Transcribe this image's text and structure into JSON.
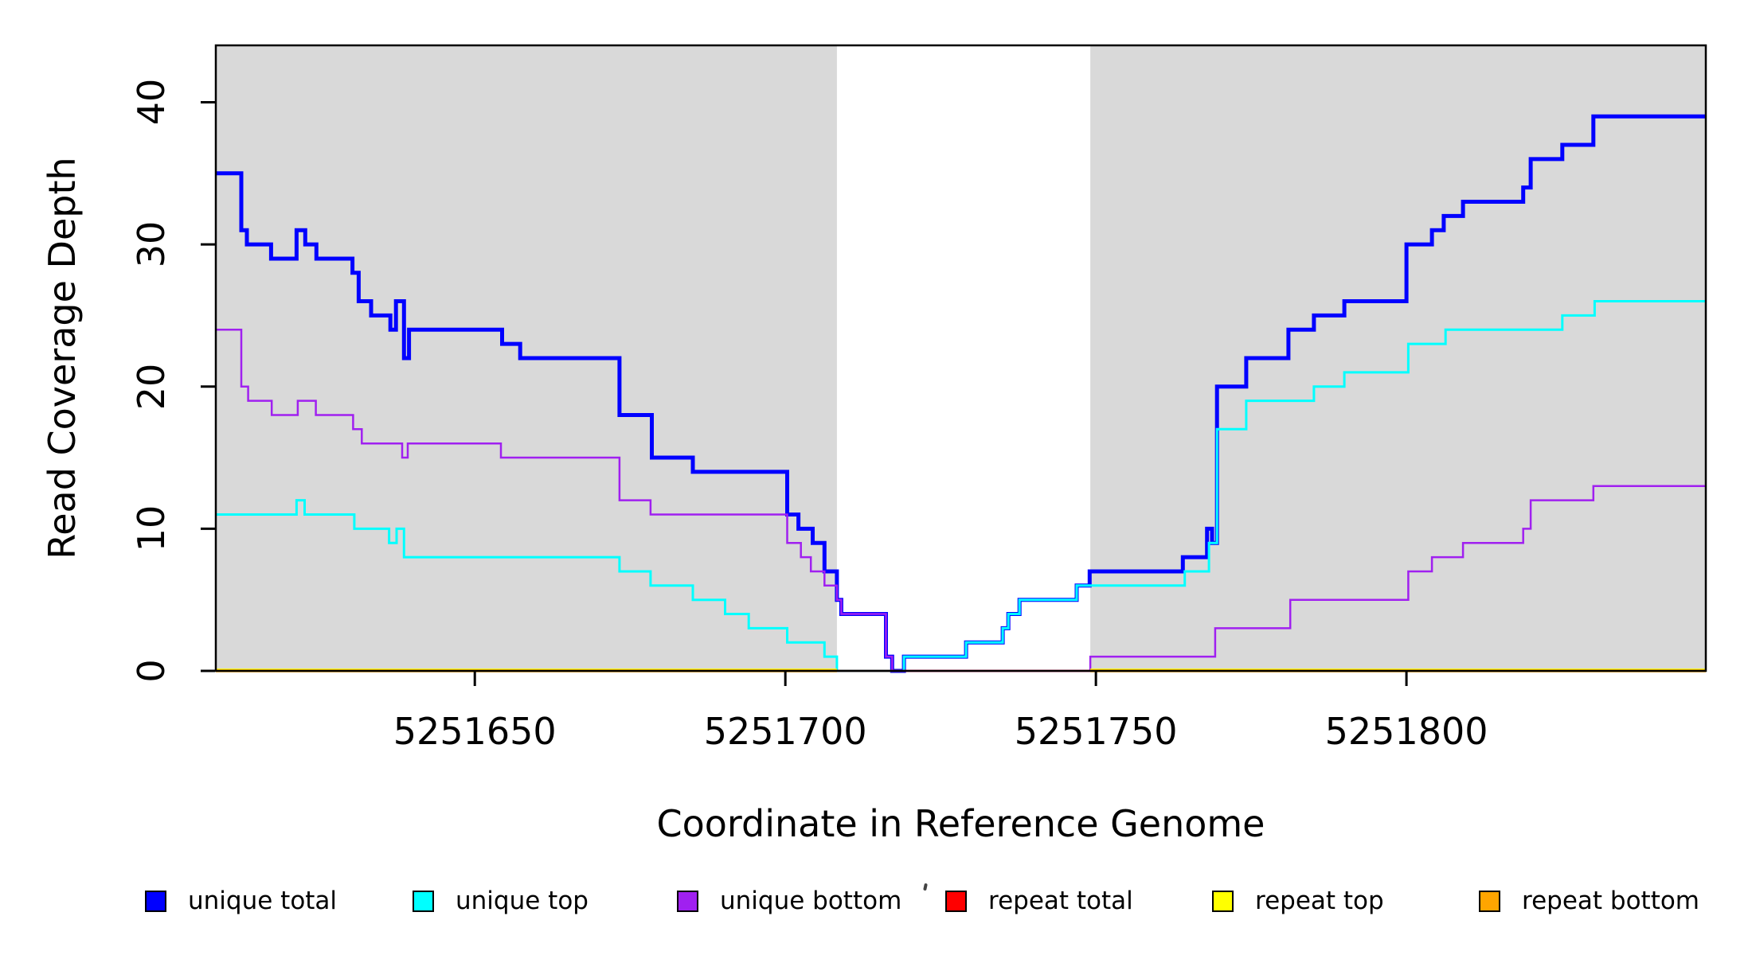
{
  "figure": {
    "y_axis_title": "Read Coverage Depth",
    "x_axis_title": "Coordinate in Reference Genome",
    "background_color": "#ffffff",
    "shaded_band_color": "#d9d9d9",
    "axis_color": "#000000"
  },
  "chart_data": {
    "type": "line",
    "subtype": "step-coverage",
    "title": "",
    "xlabel": "Coordinate in Reference Genome",
    "ylabel": "Read Coverage Depth",
    "xlim": [
      5251608.3,
      5251848.2
    ],
    "ylim": [
      0,
      44
    ],
    "x_ticks": [
      5251650,
      5251700,
      5251750,
      5251800
    ],
    "y_ticks": [
      0,
      10,
      20,
      30,
      40
    ],
    "grid": false,
    "legend_position": "bottom",
    "shaded_x_ranges": [
      [
        5251608.3,
        5251708.3
      ],
      [
        5251749.1,
        5251848.2
      ]
    ],
    "series": [
      {
        "name": "unique total",
        "color": "#0000ff",
        "step_points": [
          [
            5251608.3,
            35
          ],
          [
            5251612.4,
            31
          ],
          [
            5251613.3,
            30
          ],
          [
            5251617.2,
            29
          ],
          [
            5251621.3,
            31
          ],
          [
            5251622.7,
            30
          ],
          [
            5251624.5,
            29
          ],
          [
            5251630.3,
            28
          ],
          [
            5251631.3,
            26
          ],
          [
            5251633.3,
            25
          ],
          [
            5251636.4,
            24
          ],
          [
            5251637.3,
            26
          ],
          [
            5251638.6,
            22
          ],
          [
            5251639.4,
            24
          ],
          [
            5251654.4,
            23
          ],
          [
            5251657.3,
            22
          ],
          [
            5251673.3,
            18
          ],
          [
            5251678.5,
            15
          ],
          [
            5251685.1,
            14
          ],
          [
            5251700.3,
            11
          ],
          [
            5251702.1,
            10
          ],
          [
            5251704.4,
            9
          ],
          [
            5251706.3,
            7
          ],
          [
            5251708.3,
            5
          ],
          [
            5251709.0,
            4
          ],
          [
            5251716.2,
            1
          ],
          [
            5251717.2,
            0
          ],
          [
            5251719.1,
            1
          ],
          [
            5251729.1,
            2
          ],
          [
            5251735.0,
            3
          ],
          [
            5251735.9,
            4
          ],
          [
            5251737.7,
            5
          ],
          [
            5251746.9,
            6
          ],
          [
            5251749.0,
            7
          ],
          [
            5251764.0,
            8
          ],
          [
            5251767.9,
            10
          ],
          [
            5251768.7,
            9
          ],
          [
            5251769.5,
            20
          ],
          [
            5251774.2,
            22
          ],
          [
            5251781.0,
            24
          ],
          [
            5251785.1,
            25
          ],
          [
            5251790.0,
            26
          ],
          [
            5251800.0,
            30
          ],
          [
            5251804.1,
            31
          ],
          [
            5251806.0,
            32
          ],
          [
            5251809.1,
            33
          ],
          [
            5251818.8,
            34
          ],
          [
            5251820.0,
            36
          ],
          [
            5251825.1,
            37
          ],
          [
            5251830.1,
            39
          ]
        ]
      },
      {
        "name": "unique top",
        "color": "#00ffff",
        "step_points": [
          [
            5251608.3,
            11
          ],
          [
            5251621.3,
            12
          ],
          [
            5251622.6,
            11
          ],
          [
            5251630.6,
            10
          ],
          [
            5251636.2,
            9
          ],
          [
            5251637.4,
            10
          ],
          [
            5251638.6,
            8
          ],
          [
            5251673.3,
            7
          ],
          [
            5251678.3,
            6
          ],
          [
            5251685.1,
            5
          ],
          [
            5251690.3,
            4
          ],
          [
            5251694.1,
            3
          ],
          [
            5251700.3,
            2
          ],
          [
            5251706.3,
            1
          ],
          [
            5251708.3,
            0
          ],
          [
            5251719.1,
            1
          ],
          [
            5251729.1,
            2
          ],
          [
            5251735.0,
            3
          ],
          [
            5251735.9,
            4
          ],
          [
            5251737.7,
            5
          ],
          [
            5251746.9,
            6
          ],
          [
            5251764.3,
            7
          ],
          [
            5251768.2,
            9
          ],
          [
            5251769.5,
            17
          ],
          [
            5251774.2,
            19
          ],
          [
            5251785.1,
            20
          ],
          [
            5251790.0,
            21
          ],
          [
            5251800.3,
            23
          ],
          [
            5251806.3,
            24
          ],
          [
            5251825.1,
            25
          ],
          [
            5251830.3,
            26
          ]
        ]
      },
      {
        "name": "unique bottom",
        "color": "#a020f0",
        "step_points": [
          [
            5251608.3,
            24
          ],
          [
            5251612.4,
            20
          ],
          [
            5251613.5,
            19
          ],
          [
            5251617.3,
            18
          ],
          [
            5251621.5,
            19
          ],
          [
            5251624.4,
            18
          ],
          [
            5251630.4,
            17
          ],
          [
            5251631.8,
            16
          ],
          [
            5251638.3,
            15
          ],
          [
            5251639.2,
            16
          ],
          [
            5251654.2,
            15
          ],
          [
            5251673.3,
            12
          ],
          [
            5251678.3,
            11
          ],
          [
            5251700.3,
            9
          ],
          [
            5251702.5,
            8
          ],
          [
            5251704.1,
            7
          ],
          [
            5251706.3,
            6
          ],
          [
            5251708.3,
            5
          ],
          [
            5251709.0,
            4
          ],
          [
            5251716.2,
            1
          ],
          [
            5251717.2,
            0
          ],
          [
            5251749.1,
            1
          ],
          [
            5251769.2,
            3
          ],
          [
            5251781.3,
            5
          ],
          [
            5251800.3,
            7
          ],
          [
            5251804.1,
            8
          ],
          [
            5251809.1,
            9
          ],
          [
            5251818.8,
            10
          ],
          [
            5251820.0,
            12
          ],
          [
            5251830.1,
            13
          ]
        ]
      },
      {
        "name": "repeat total",
        "color": "#ff0000",
        "step_points": [
          [
            5251608.3,
            0
          ]
        ]
      },
      {
        "name": "repeat top",
        "color": "#ffff00",
        "step_points": [
          [
            5251608.3,
            0
          ]
        ]
      },
      {
        "name": "repeat bottom",
        "color": "#ffa500",
        "step_points": [
          [
            5251608.3,
            0
          ]
        ]
      }
    ]
  },
  "legend": {
    "items": [
      {
        "label": "unique total",
        "color": "#0000ff"
      },
      {
        "label": "unique top",
        "color": "#00ffff"
      },
      {
        "label": "unique bottom",
        "color": "#a020f0"
      },
      {
        "label": "repeat total",
        "color": "#ff0000"
      },
      {
        "label": "repeat top",
        "color": "#ffff00"
      },
      {
        "label": "repeat bottom",
        "color": "#ffa500"
      }
    ]
  }
}
